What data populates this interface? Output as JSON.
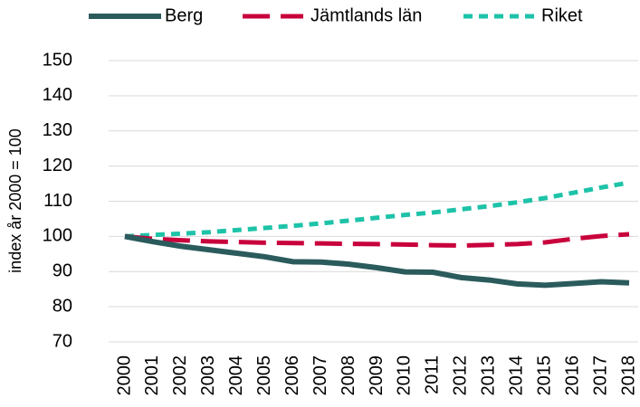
{
  "chart_data": {
    "type": "line",
    "y_label": "index år 2000 = 100",
    "categories": [
      "2000",
      "2001",
      "2002",
      "2003",
      "2004",
      "2005",
      "2006",
      "2007",
      "2008",
      "2009",
      "2010",
      "2011",
      "2012",
      "2013",
      "2014",
      "2015",
      "2016",
      "2017",
      "2018"
    ],
    "series": [
      {
        "name": "Berg",
        "color": "#2b5b5c",
        "dash": "solid",
        "values": [
          100,
          98.5,
          97.2,
          96.2,
          95.2,
          94.2,
          92.8,
          92.7,
          92.1,
          91.1,
          89.9,
          89.8,
          88.3,
          87.6,
          86.5,
          86.1,
          86.6,
          87.1,
          86.8
        ]
      },
      {
        "name": "Jämtlands län",
        "color": "#c8003c",
        "dash": "long-dash",
        "values": [
          100,
          99.3,
          98.9,
          98.6,
          98.4,
          98.2,
          98.1,
          98.0,
          97.9,
          97.8,
          97.7,
          97.5,
          97.4,
          97.6,
          97.8,
          98.3,
          99.3,
          100.1,
          100.6
        ]
      },
      {
        "name": "Riket",
        "color": "#1dc3a8",
        "dash": "dash",
        "values": [
          100,
          100.4,
          100.8,
          101.2,
          101.8,
          102.4,
          103.0,
          103.7,
          104.5,
          105.3,
          106.1,
          106.8,
          107.7,
          108.6,
          109.7,
          110.9,
          112.4,
          113.9,
          115.3
        ]
      }
    ],
    "ylim": [
      70,
      150
    ],
    "yticks": [
      70,
      80,
      90,
      100,
      110,
      120,
      130,
      140,
      150
    ],
    "grid": true,
    "legend": "top"
  }
}
